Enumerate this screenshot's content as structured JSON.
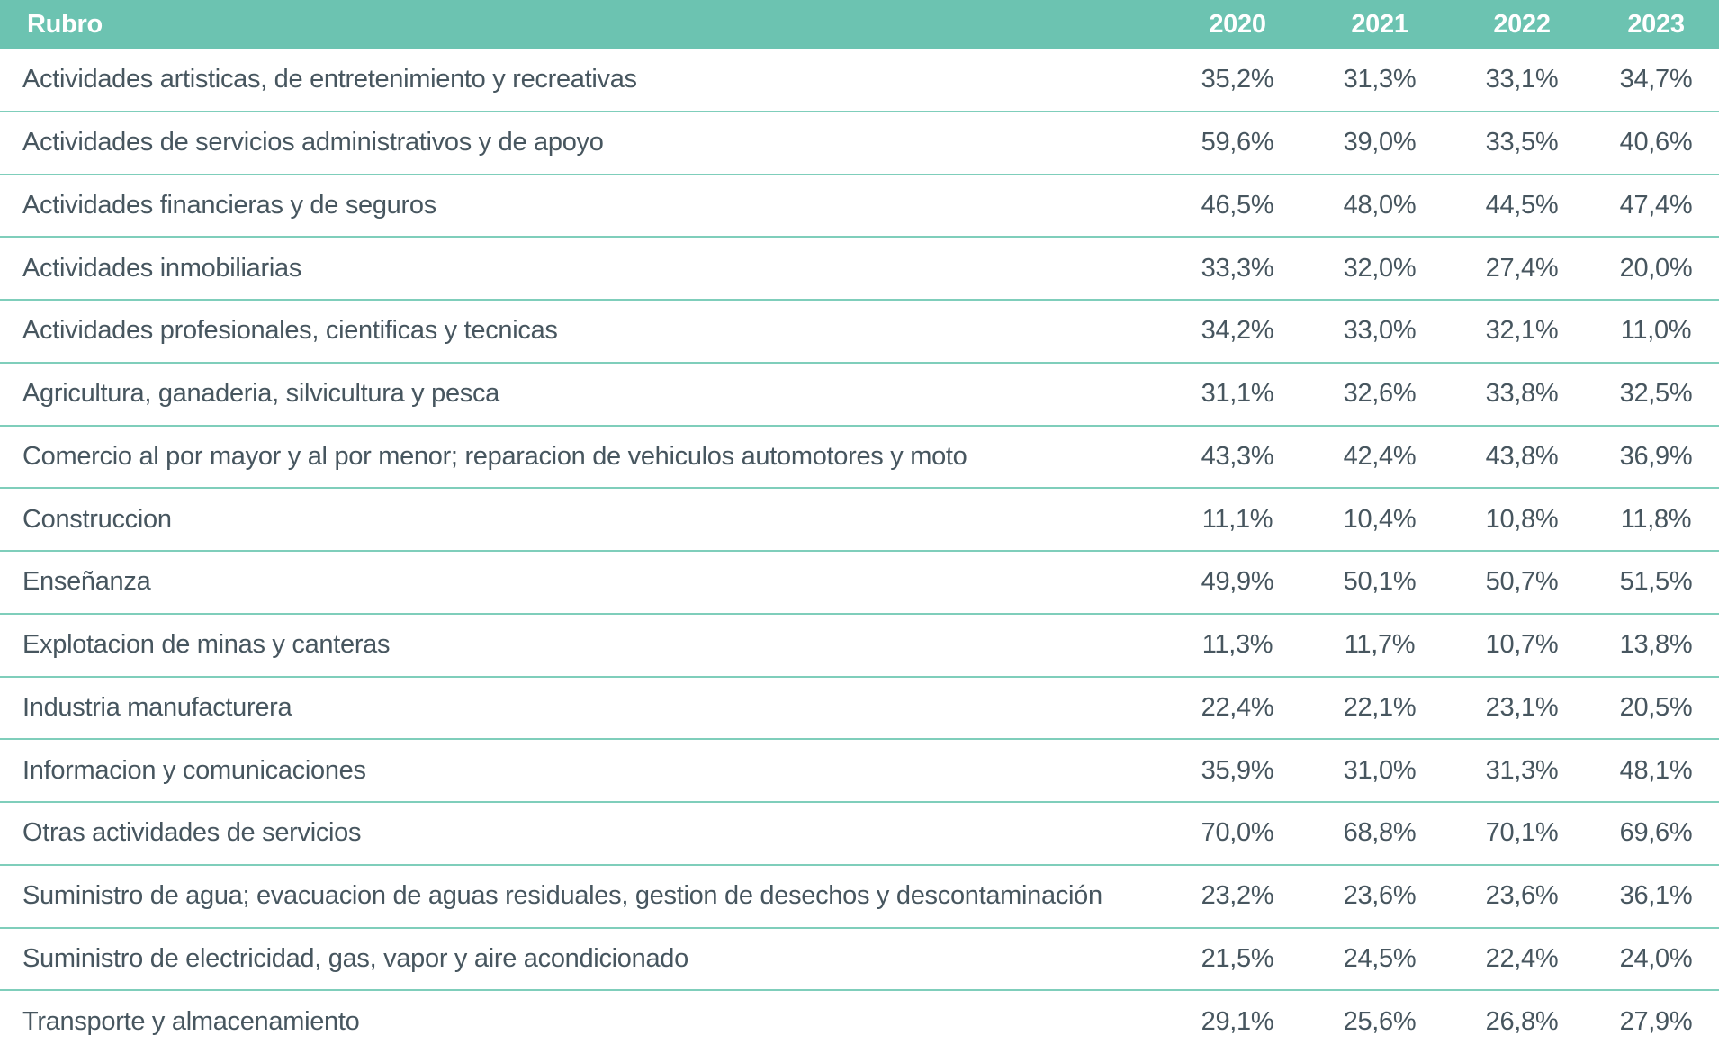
{
  "table": {
    "columns": [
      "Rubro",
      "2020",
      "2021",
      "2022",
      "2023"
    ],
    "rows": [
      {
        "label": "Actividades artisticas, de entretenimiento y recreativas",
        "values": [
          "35,2%",
          "31,3%",
          "33,1%",
          "34,7%"
        ]
      },
      {
        "label": "Actividades de servicios administrativos y de apoyo",
        "values": [
          "59,6%",
          "39,0%",
          "33,5%",
          "40,6%"
        ]
      },
      {
        "label": "Actividades financieras y de seguros",
        "values": [
          "46,5%",
          "48,0%",
          "44,5%",
          "47,4%"
        ]
      },
      {
        "label": "Actividades inmobiliarias",
        "values": [
          "33,3%",
          "32,0%",
          "27,4%",
          "20,0%"
        ]
      },
      {
        "label": "Actividades profesionales, cientificas y tecnicas",
        "values": [
          "34,2%",
          "33,0%",
          "32,1%",
          "11,0%"
        ]
      },
      {
        "label": "Agricultura, ganaderia, silvicultura y pesca",
        "values": [
          "31,1%",
          "32,6%",
          "33,8%",
          "32,5%"
        ]
      },
      {
        "label": "Comercio al por mayor y al por menor; reparacion de vehiculos automotores y moto",
        "values": [
          "43,3%",
          "42,4%",
          "43,8%",
          "36,9%"
        ]
      },
      {
        "label": "Construccion",
        "values": [
          "11,1%",
          "10,4%",
          "10,8%",
          "11,8%"
        ]
      },
      {
        "label": "Enseñanza",
        "values": [
          "49,9%",
          "50,1%",
          "50,7%",
          "51,5%"
        ]
      },
      {
        "label": "Explotacion de minas y canteras",
        "values": [
          "11,3%",
          "11,7%",
          "10,7%",
          "13,8%"
        ]
      },
      {
        "label": "Industria manufacturera",
        "values": [
          "22,4%",
          "22,1%",
          "23,1%",
          "20,5%"
        ]
      },
      {
        "label": "Informacion y comunicaciones",
        "values": [
          "35,9%",
          "31,0%",
          "31,3%",
          "48,1%"
        ]
      },
      {
        "label": "Otras actividades de servicios",
        "values": [
          "70,0%",
          "68,8%",
          "70,1%",
          "69,6%"
        ]
      },
      {
        "label": "Suministro de agua; evacuacion de aguas residuales, gestion de desechos y descontaminación",
        "values": [
          "23,2%",
          "23,6%",
          "23,6%",
          "36,1%"
        ]
      },
      {
        "label": "Suministro de electricidad, gas, vapor y aire acondicionado",
        "values": [
          "21,5%",
          "24,5%",
          "22,4%",
          "24,0%"
        ]
      },
      {
        "label": "Transporte y almacenamiento",
        "values": [
          "29,1%",
          "25,6%",
          "26,8%",
          "27,9%"
        ]
      }
    ]
  },
  "chart_data": {
    "type": "table",
    "title": "",
    "categories": [
      "Actividades artisticas, de entretenimiento y recreativas",
      "Actividades de servicios administrativos y de apoyo",
      "Actividades financieras y de seguros",
      "Actividades inmobiliarias",
      "Actividades profesionales, cientificas y tecnicas",
      "Agricultura, ganaderia, silvicultura y pesca",
      "Comercio al por mayor y al por menor; reparacion de vehiculos automotores y moto",
      "Construccion",
      "Enseñanza",
      "Explotacion de minas y canteras",
      "Industria manufacturera",
      "Informacion y comunicaciones",
      "Otras actividades de servicios",
      "Suministro de agua; evacuacion de aguas residuales, gestion de desechos y descontaminación",
      "Suministro de electricidad, gas, vapor y aire acondicionado",
      "Transporte y almacenamiento"
    ],
    "series": [
      {
        "name": "2020",
        "values": [
          35.2,
          59.6,
          46.5,
          33.3,
          34.2,
          31.1,
          43.3,
          11.1,
          49.9,
          11.3,
          22.4,
          35.9,
          70.0,
          23.2,
          21.5,
          29.1
        ]
      },
      {
        "name": "2021",
        "values": [
          31.3,
          39.0,
          48.0,
          32.0,
          33.0,
          32.6,
          42.4,
          10.4,
          50.1,
          11.7,
          22.1,
          31.0,
          68.8,
          23.6,
          24.5,
          25.6
        ]
      },
      {
        "name": "2022",
        "values": [
          33.1,
          33.5,
          44.5,
          27.4,
          32.1,
          33.8,
          43.8,
          10.8,
          50.7,
          10.7,
          23.1,
          31.3,
          70.1,
          23.6,
          22.4,
          26.8
        ]
      },
      {
        "name": "2023",
        "values": [
          34.7,
          40.6,
          47.4,
          20.0,
          11.0,
          32.5,
          36.9,
          11.8,
          51.5,
          13.8,
          20.5,
          48.1,
          69.6,
          36.1,
          24.0,
          27.9
        ]
      }
    ],
    "value_unit": "%",
    "decimal_separator": ","
  },
  "colors": {
    "header_bg": "#6cc3b1",
    "header_text": "#ffffff",
    "row_divider": "#7fcebb",
    "cell_text": "#47565f",
    "background": "#ffffff"
  }
}
